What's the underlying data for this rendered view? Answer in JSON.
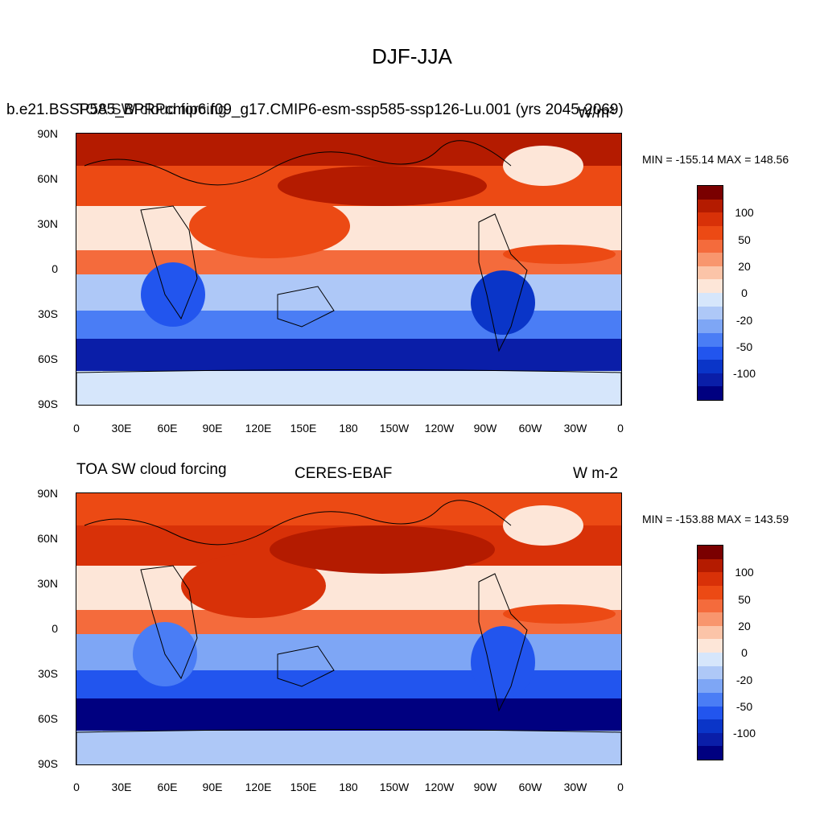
{
  "figure": {
    "title": "DJF-JJA"
  },
  "colors": {
    "levels": [
      "#000080",
      "#0a1ea8",
      "#0a35c8",
      "#2255ee",
      "#4a7df5",
      "#7ea6f5",
      "#aec8f7",
      "#d6e6fb",
      "#fde6d8",
      "#fbc4a8",
      "#f8966e",
      "#f46b3c",
      "#ec4a14",
      "#d83108",
      "#b41b00",
      "#7a0000"
    ]
  },
  "panels": [
    {
      "left_title_overlap": "b.e21.BSSP585_BPRPcmip6.f09_g17.CMIP6-esm-ssp585-ssp126-Lu.001 (yrs 2045-2069)",
      "left_title_overlap_b": "TOA SW cloud forcing",
      "units": "W/m²",
      "stats": "MIN = -155.14 MAX = 148.56"
    },
    {
      "left_title": "TOA SW cloud forcing",
      "center_title": "CERES-EBAF",
      "units": "W m-2",
      "stats": "MIN = -153.88 MAX = 143.59"
    }
  ],
  "axes": {
    "lat_labels": [
      "90N",
      "60N",
      "30N",
      "0",
      "30S",
      "60S",
      "90S"
    ],
    "lon_labels": [
      "0",
      "30E",
      "60E",
      "90E",
      "120E",
      "150E",
      "180",
      "150W",
      "120W",
      "90W",
      "60W",
      "30W",
      "0"
    ]
  },
  "colorbar": {
    "labels": [
      "100",
      "50",
      "20",
      "0",
      "-20",
      "-50",
      "-100"
    ]
  }
}
